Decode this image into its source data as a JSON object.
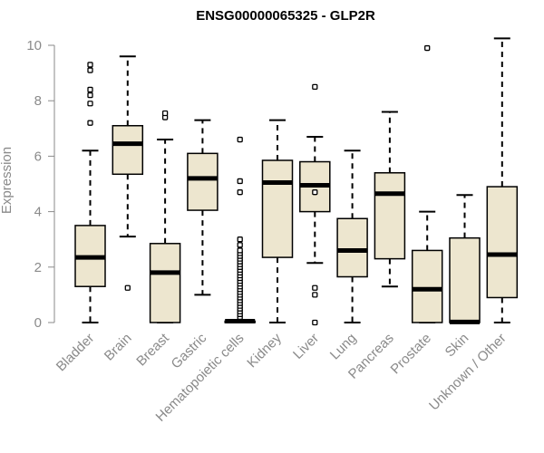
{
  "chart_data": {
    "type": "box",
    "title": "ENSG00000065325 - GLP2R",
    "ylabel": "Expression",
    "xlabel": "",
    "ylim": [
      0,
      10.5
    ],
    "yticks": [
      0,
      2,
      4,
      6,
      8,
      10
    ],
    "box_fill": "#ede6cf",
    "median_color": "#000000",
    "axis_color": "#8a8a8a",
    "categories": [
      "Bladder",
      "Brain",
      "Breast",
      "Gastric",
      "Hematopoietic cells",
      "Kidney",
      "Liver",
      "Lung",
      "Pancreas",
      "Prostate",
      "Skin",
      "Unknown / Other"
    ],
    "boxes": [
      {
        "category": "Bladder",
        "whisker_low": 0.0,
        "q1": 1.3,
        "median": 2.35,
        "q3": 3.5,
        "whisker_high": 6.2,
        "outliers": [
          7.2,
          7.9,
          8.2,
          8.4,
          9.1,
          9.3
        ]
      },
      {
        "category": "Brain",
        "whisker_low": 3.1,
        "q1": 5.35,
        "median": 6.45,
        "q3": 7.1,
        "whisker_high": 9.6,
        "outliers": [
          1.25
        ]
      },
      {
        "category": "Breast",
        "whisker_low": 0.0,
        "q1": 0.0,
        "median": 1.8,
        "q3": 2.85,
        "whisker_high": 6.6,
        "outliers": [
          7.4,
          7.55
        ]
      },
      {
        "category": "Gastric",
        "whisker_low": 1.0,
        "q1": 4.05,
        "median": 5.2,
        "q3": 6.1,
        "whisker_high": 7.3,
        "outliers": []
      },
      {
        "category": "Hematopoietic cells",
        "whisker_low": 0.0,
        "q1": 0.0,
        "median": 0.05,
        "q3": 0.05,
        "whisker_high": 0.1,
        "outliers": [
          0.2,
          0.3,
          0.4,
          0.5,
          0.6,
          0.7,
          0.8,
          0.9,
          1.0,
          1.1,
          1.2,
          1.3,
          1.4,
          1.5,
          1.6,
          1.7,
          1.8,
          1.9,
          2.0,
          2.1,
          2.2,
          2.3,
          2.4,
          2.5,
          2.6,
          2.8,
          3.0,
          4.7,
          5.1,
          6.6
        ]
      },
      {
        "category": "Kidney",
        "whisker_low": 0.0,
        "q1": 2.35,
        "median": 5.05,
        "q3": 5.85,
        "whisker_high": 7.3,
        "outliers": []
      },
      {
        "category": "Liver",
        "whisker_low": 2.15,
        "q1": 4.0,
        "median": 4.95,
        "q3": 5.8,
        "whisker_high": 6.7,
        "outliers": [
          0.0,
          1.0,
          1.25,
          4.7,
          8.5
        ]
      },
      {
        "category": "Lung",
        "whisker_low": 0.0,
        "q1": 1.65,
        "median": 2.6,
        "q3": 3.75,
        "whisker_high": 6.2,
        "outliers": []
      },
      {
        "category": "Pancreas",
        "whisker_low": 1.3,
        "q1": 2.3,
        "median": 4.65,
        "q3": 5.4,
        "whisker_high": 7.6,
        "outliers": []
      },
      {
        "category": "Prostate",
        "whisker_low": 0.0,
        "q1": 0.0,
        "median": 1.2,
        "q3": 2.6,
        "whisker_high": 4.0,
        "outliers": [
          9.9
        ]
      },
      {
        "category": "Skin",
        "whisker_low": 0.0,
        "q1": 0.0,
        "median": 0.02,
        "q3": 3.05,
        "whisker_high": 4.6,
        "outliers": []
      },
      {
        "category": "Unknown / Other",
        "whisker_low": 0.0,
        "q1": 0.9,
        "median": 2.45,
        "q3": 4.9,
        "whisker_high": 10.25,
        "outliers": []
      }
    ]
  }
}
